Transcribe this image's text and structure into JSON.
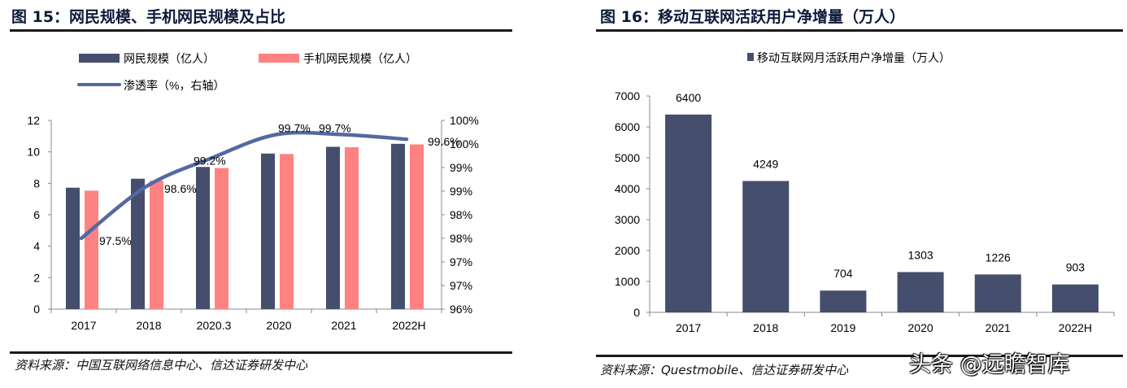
{
  "left": {
    "title": "图 15：网民规模、手机网民规模及占比",
    "source": "资料来源：中国互联网络信息中心、信达证券研发中心",
    "chart_data": {
      "type": "bar",
      "categories": [
        "2017",
        "2018",
        "2020.3",
        "2020",
        "2021",
        "2022H"
      ],
      "series": [
        {
          "name": "网民规模（亿人）",
          "kind": "bar",
          "axis": "left",
          "values": [
            7.72,
            8.29,
            9.04,
            9.89,
            10.32,
            10.51
          ]
        },
        {
          "name": "手机网民规模（亿人）",
          "kind": "bar",
          "axis": "left",
          "values": [
            7.53,
            8.17,
            8.97,
            9.86,
            10.29,
            10.47
          ]
        },
        {
          "name": "渗透率（%，右轴）",
          "kind": "line",
          "axis": "right",
          "values": [
            97.5,
            98.6,
            99.2,
            99.7,
            99.7,
            99.6
          ],
          "labels": [
            "97.5%",
            "98.6%",
            "99.2%",
            "99.7%",
            "99.7%",
            "99.6%"
          ]
        }
      ],
      "ylim": [
        0,
        12
      ],
      "y_ticks": [
        "0",
        "2",
        "4",
        "6",
        "8",
        "10",
        "12"
      ],
      "y2lim": [
        96,
        100
      ],
      "y2_ticks": [
        "96%",
        "97%",
        "97%",
        "98%",
        "98%",
        "99%",
        "99%",
        "100%",
        "100%"
      ],
      "legend_position": "top",
      "colors": {
        "bar1": "#454e6c",
        "bar2": "#fe8282",
        "line": "#5668a1"
      }
    }
  },
  "right": {
    "title": "图 16：移动互联网活跃用户净增量（万人）",
    "source": "资料来源：Questmobile、信达证券研发中心",
    "chart_data": {
      "type": "bar",
      "categories": [
        "2017",
        "2018",
        "2019",
        "2020",
        "2021",
        "2022H"
      ],
      "series": [
        {
          "name": "移动互联网月活跃用户净增量（万人）",
          "values": [
            6400,
            4249,
            704,
            1303,
            1226,
            903
          ]
        }
      ],
      "ylim": [
        0,
        7000
      ],
      "y_ticks": [
        "0",
        "1000",
        "2000",
        "3000",
        "4000",
        "5000",
        "6000",
        "7000"
      ],
      "legend_position": "top",
      "colors": {
        "bar": "#454e6c"
      }
    }
  },
  "watermark": "头条 @远瞻智库"
}
